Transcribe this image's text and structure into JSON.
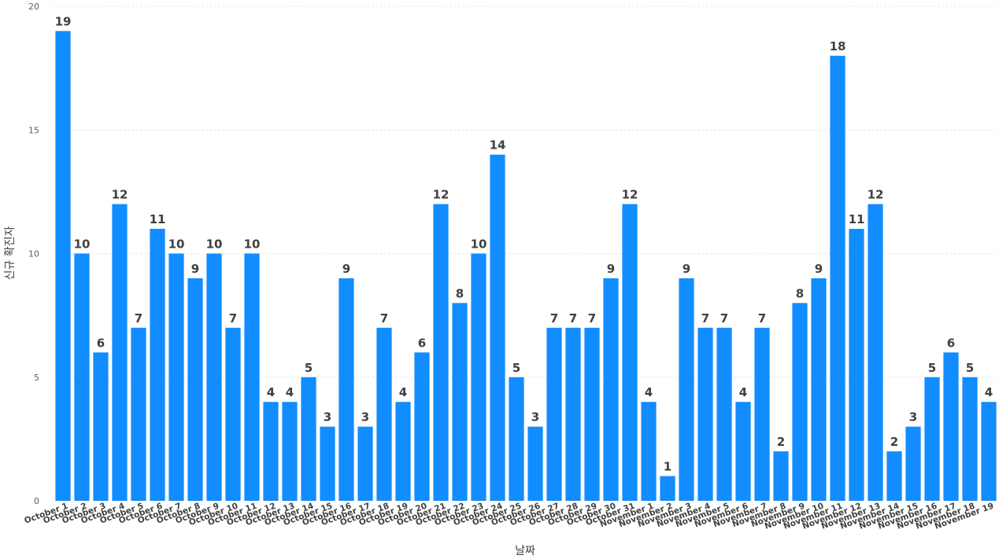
{
  "chart_data": {
    "type": "bar",
    "xlabel": "날짜",
    "ylabel": "신규 확진자",
    "ylim": [
      0,
      20
    ],
    "yticks": [
      0,
      5,
      10,
      15,
      20
    ],
    "grid": true,
    "color": "#118DFF",
    "categories": [
      "October 1",
      "October 2",
      "October 3",
      "October 4",
      "October 5",
      "October 6",
      "October 7",
      "October 8",
      "October 9",
      "October 10",
      "October 11",
      "October 12",
      "October 13",
      "October 14",
      "October 15",
      "October 16",
      "October 17",
      "October 18",
      "October 19",
      "October 20",
      "October 21",
      "October 22",
      "October 23",
      "October 24",
      "October 25",
      "October 26",
      "October 27",
      "October 28",
      "October 29",
      "October 30",
      "October 31",
      "November 1",
      "November 2",
      "November 3",
      "November 4",
      "November 5",
      "November 6",
      "November 7",
      "November 8",
      "November 9",
      "November 10",
      "November 11",
      "November 12",
      "November 13",
      "November 14",
      "November 15",
      "November 16",
      "November 17",
      "November 18",
      "November 19"
    ],
    "values": [
      19,
      10,
      6,
      12,
      7,
      11,
      10,
      9,
      10,
      7,
      10,
      4,
      4,
      5,
      3,
      9,
      3,
      7,
      4,
      6,
      12,
      8,
      10,
      14,
      5,
      3,
      7,
      7,
      7,
      9,
      12,
      4,
      1,
      9,
      7,
      7,
      4,
      7,
      2,
      8,
      9,
      18,
      11,
      12,
      2,
      3,
      5,
      6,
      5,
      4
    ]
  }
}
